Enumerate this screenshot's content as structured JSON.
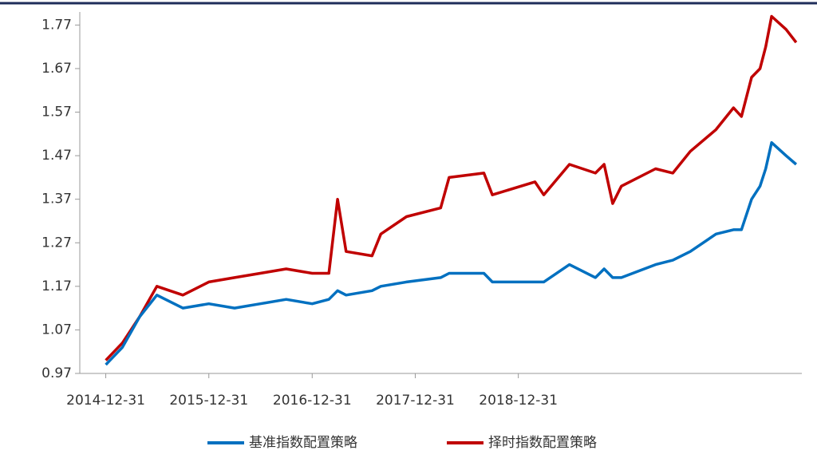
{
  "chart_data": {
    "type": "line",
    "x": [
      "2014-12-31",
      "2015-02-28",
      "2015-04-30",
      "2015-06-30",
      "2015-09-30",
      "2015-12-31",
      "2016-03-31",
      "2016-06-30",
      "2016-09-30",
      "2016-12-31",
      "2017-02-28",
      "2017-03-31",
      "2017-04-30",
      "2017-07-31",
      "2017-08-31",
      "2017-11-30",
      "2018-03-31",
      "2018-04-30",
      "2018-08-31",
      "2018-09-30",
      "2019-02-28",
      "2019-03-31",
      "2019-06-30",
      "2019-09-30",
      "2019-10-31",
      "2019-11-30",
      "2019-12-31",
      "2020-04-30",
      "2020-06-30",
      "2020-08-31",
      "2020-11-30",
      "2021-01-31",
      "2021-02-28",
      "2021-04-05",
      "2021-05-05",
      "2021-05-25",
      "2021-06-15",
      "2021-08-05",
      "2021-09-10"
    ],
    "series": [
      {
        "name": "择时指数配置策略",
        "color": "#c00000",
        "values": [
          1.0,
          1.04,
          1.1,
          1.17,
          1.15,
          1.18,
          1.19,
          1.2,
          1.21,
          1.2,
          1.2,
          1.37,
          1.25,
          1.24,
          1.29,
          1.33,
          1.35,
          1.42,
          1.43,
          1.38,
          1.41,
          1.38,
          1.45,
          1.43,
          1.45,
          1.36,
          1.4,
          1.44,
          1.43,
          1.48,
          1.53,
          1.58,
          1.56,
          1.65,
          1.67,
          1.72,
          1.79,
          1.76,
          1.73
        ]
      },
      {
        "name": "基准指数配置策略",
        "color": "#0070c0",
        "values": [
          0.99,
          1.03,
          1.1,
          1.15,
          1.12,
          1.13,
          1.12,
          1.13,
          1.14,
          1.13,
          1.14,
          1.16,
          1.15,
          1.16,
          1.17,
          1.18,
          1.19,
          1.2,
          1.2,
          1.18,
          1.18,
          1.18,
          1.22,
          1.19,
          1.21,
          1.19,
          1.19,
          1.22,
          1.23,
          1.25,
          1.29,
          1.3,
          1.3,
          1.37,
          1.4,
          1.44,
          1.5,
          1.47,
          1.45
        ]
      }
    ],
    "ylim": [
      0.97,
      1.8
    ],
    "yticks": [
      0.97,
      1.07,
      1.17,
      1.27,
      1.37,
      1.47,
      1.57,
      1.67,
      1.77
    ],
    "xlim": [
      "2014-09-30",
      "2021-09-30"
    ],
    "xticks": [
      "2014-12-31",
      "2015-12-31",
      "2016-12-31",
      "2017-12-31",
      "2018-12-31"
    ]
  }
}
